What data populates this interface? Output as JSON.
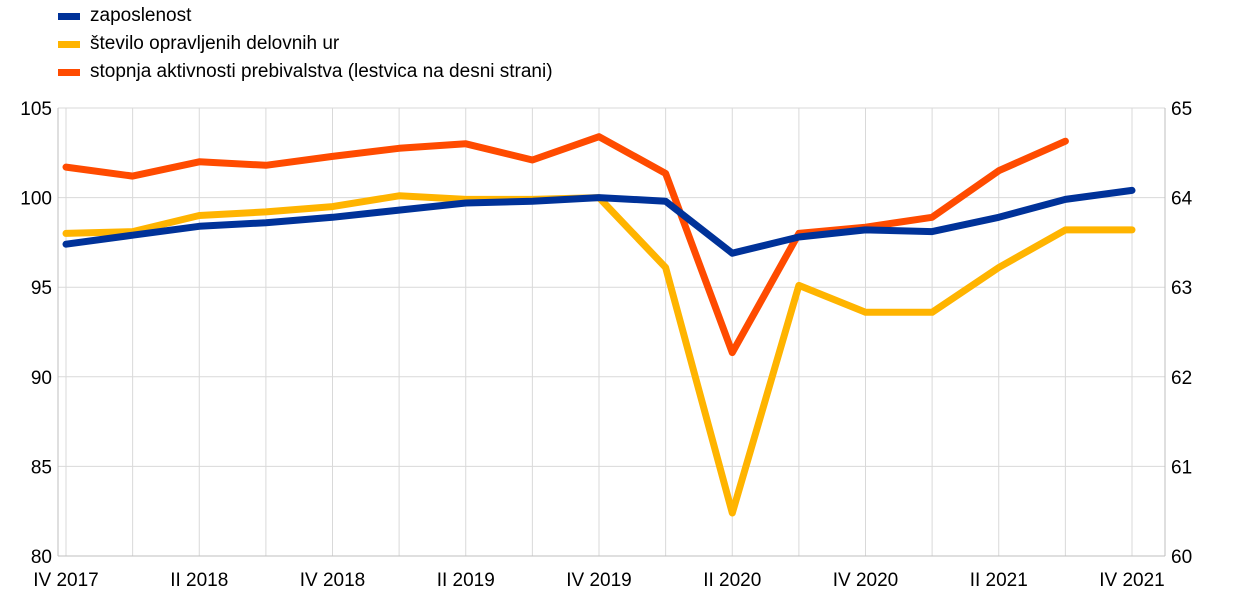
{
  "legend": {
    "items": [
      {
        "label": "zaposlenost",
        "color": "#003299"
      },
      {
        "label": "število opravljenih delovnih ur",
        "color": "#FFB400"
      },
      {
        "label": "stopnja aktivnosti prebivalstva (lestvica na desni strani)",
        "color": "#FF4B00"
      }
    ]
  },
  "chart_data": {
    "type": "line",
    "x": [
      "IV 2017",
      "I 2018",
      "II 2018",
      "III 2018",
      "IV 2018",
      "I 2019",
      "II 2019",
      "III 2019",
      "IV 2019",
      "I 2020",
      "II 2020",
      "III 2020",
      "IV 2020",
      "I 2021",
      "II 2021",
      "III 2021",
      "IV 2021"
    ],
    "x_tick_labels": [
      "IV 2017",
      "II 2018",
      "IV 2018",
      "II 2019",
      "IV 2019",
      "II 2020",
      "IV 2020",
      "II 2021",
      "IV 2021"
    ],
    "ylim_left": [
      80,
      105
    ],
    "yticks_left": [
      "105",
      "100",
      "95",
      "90",
      "85",
      "80"
    ],
    "ylim_right": [
      60,
      65
    ],
    "yticks_right": [
      "65",
      "64",
      "63",
      "62",
      "61",
      "60"
    ],
    "grid": true,
    "legend_position": "top-left",
    "series": [
      {
        "name": "zaposlenost",
        "axis": "left",
        "color": "#003299",
        "values": [
          97.4,
          97.9,
          98.4,
          98.6,
          98.9,
          99.3,
          99.7,
          99.8,
          100.0,
          99.8,
          96.9,
          97.8,
          98.2,
          98.1,
          98.9,
          99.9,
          100.4
        ]
      },
      {
        "name": "število opravljenih delovnih ur",
        "axis": "left",
        "color": "#FFB400",
        "values": [
          98.0,
          98.1,
          99.0,
          99.2,
          99.5,
          100.1,
          99.9,
          99.9,
          100.0,
          96.1,
          82.4,
          95.1,
          93.6,
          93.6,
          96.1,
          98.2,
          98.2
        ]
      },
      {
        "name": "stopnja aktivnosti prebivalstva (lestvica na desni strani)",
        "axis": "right",
        "color": "#FF4B00",
        "values": [
          64.34,
          64.24,
          64.4,
          64.36,
          64.46,
          64.55,
          64.6,
          64.42,
          64.68,
          64.27,
          62.27,
          63.6,
          63.67,
          63.78,
          64.3,
          64.63,
          null
        ]
      }
    ]
  }
}
